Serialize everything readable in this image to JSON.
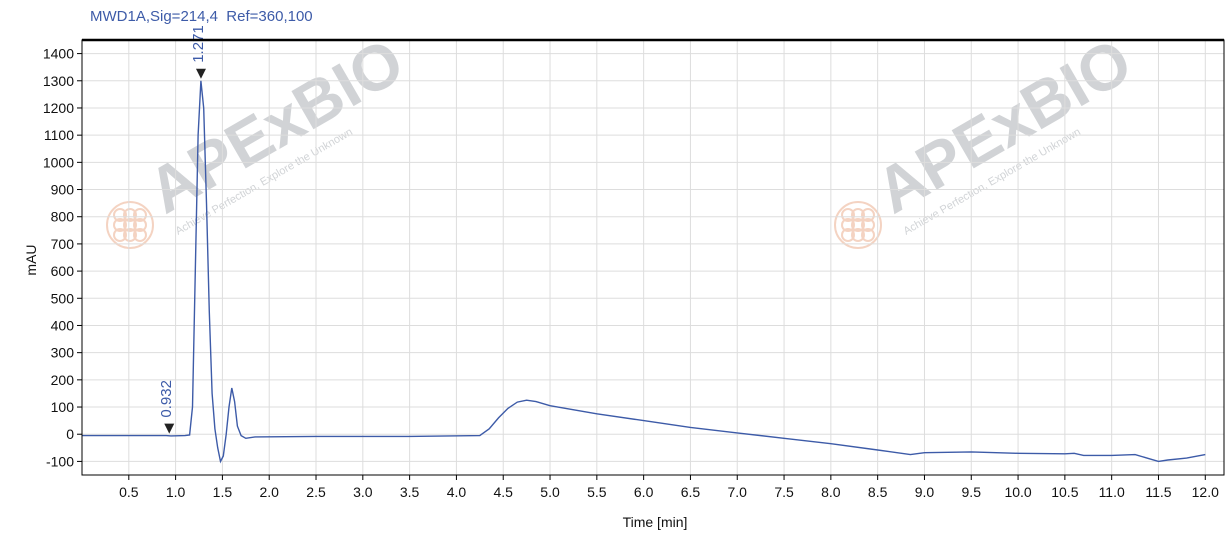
{
  "chart_data": {
    "type": "line",
    "title": "MWD1A,Sig=214,4  Ref=360,100",
    "xlabel": "Time [min]",
    "ylabel": "mAU",
    "xlim": [
      0,
      12.2
    ],
    "ylim": [
      -150,
      1450
    ],
    "x_ticks": [
      0.5,
      1.0,
      1.5,
      2.0,
      2.5,
      3.0,
      3.5,
      4.0,
      4.5,
      5.0,
      5.5,
      6.0,
      6.5,
      7.0,
      7.5,
      8.0,
      8.5,
      9.0,
      9.5,
      10.0,
      10.5,
      11.0,
      11.5,
      12.0
    ],
    "x_tick_labels": [
      "0.5",
      "1.0",
      "1.5",
      "2.0",
      "2.5",
      "3.0",
      "3.5",
      "4.0",
      "4.5",
      "5.0",
      "5.5",
      "6.0",
      "6.5",
      "7.0",
      "7.5",
      "8.0",
      "8.5",
      "9.0",
      "9.5",
      "10.0",
      "10.5",
      "11.0",
      "11.5",
      "12.0"
    ],
    "y_ticks": [
      -100,
      0,
      100,
      200,
      300,
      400,
      500,
      600,
      700,
      800,
      900,
      1000,
      1100,
      1200,
      1300,
      1400
    ],
    "y_tick_labels": [
      "-100",
      "0",
      "100",
      "200",
      "300",
      "400",
      "500",
      "600",
      "700",
      "800",
      "900",
      "1000",
      "1100",
      "1200",
      "1300",
      "1400"
    ],
    "grid": true,
    "line_color": "#3d5ba8",
    "series": [
      {
        "points": [
          [
            0.0,
            -5
          ],
          [
            0.9,
            -5
          ],
          [
            0.95,
            -6
          ],
          [
            1.1,
            -5
          ],
          [
            1.15,
            -3
          ],
          [
            1.18,
            100
          ],
          [
            1.21,
            600
          ],
          [
            1.24,
            1100
          ],
          [
            1.27,
            1300
          ],
          [
            1.3,
            1200
          ],
          [
            1.33,
            850
          ],
          [
            1.36,
            450
          ],
          [
            1.39,
            150
          ],
          [
            1.42,
            20
          ],
          [
            1.45,
            -50
          ],
          [
            1.48,
            -100
          ],
          [
            1.51,
            -80
          ],
          [
            1.54,
            0
          ],
          [
            1.57,
            100
          ],
          [
            1.6,
            170
          ],
          [
            1.63,
            120
          ],
          [
            1.66,
            30
          ],
          [
            1.7,
            -5
          ],
          [
            1.75,
            -15
          ],
          [
            1.85,
            -10
          ],
          [
            2.5,
            -8
          ],
          [
            3.5,
            -8
          ],
          [
            4.25,
            -5
          ],
          [
            4.35,
            20
          ],
          [
            4.45,
            60
          ],
          [
            4.55,
            95
          ],
          [
            4.65,
            118
          ],
          [
            4.75,
            125
          ],
          [
            4.85,
            120
          ],
          [
            5.0,
            105
          ],
          [
            5.5,
            75
          ],
          [
            6.0,
            50
          ],
          [
            6.5,
            25
          ],
          [
            7.0,
            5
          ],
          [
            7.5,
            -15
          ],
          [
            8.0,
            -35
          ],
          [
            8.5,
            -58
          ],
          [
            8.85,
            -75
          ],
          [
            9.0,
            -68
          ],
          [
            9.5,
            -65
          ],
          [
            10.0,
            -70
          ],
          [
            10.5,
            -72
          ],
          [
            10.6,
            -70
          ],
          [
            10.7,
            -78
          ],
          [
            11.0,
            -78
          ],
          [
            11.25,
            -75
          ],
          [
            11.4,
            -90
          ],
          [
            11.5,
            -100
          ],
          [
            11.6,
            -95
          ],
          [
            11.8,
            -88
          ],
          [
            12.0,
            -75
          ]
        ]
      }
    ],
    "peaks": [
      {
        "x": 0.932,
        "label": "0.932",
        "marker_y": -5
      },
      {
        "x": 1.271,
        "label": "1.271",
        "marker_y": 1300
      }
    ],
    "watermark": {
      "brand": "APExBIO",
      "tagline": "Achieve Perfection, Explore the Unknown",
      "color": "#e8a07a"
    }
  }
}
